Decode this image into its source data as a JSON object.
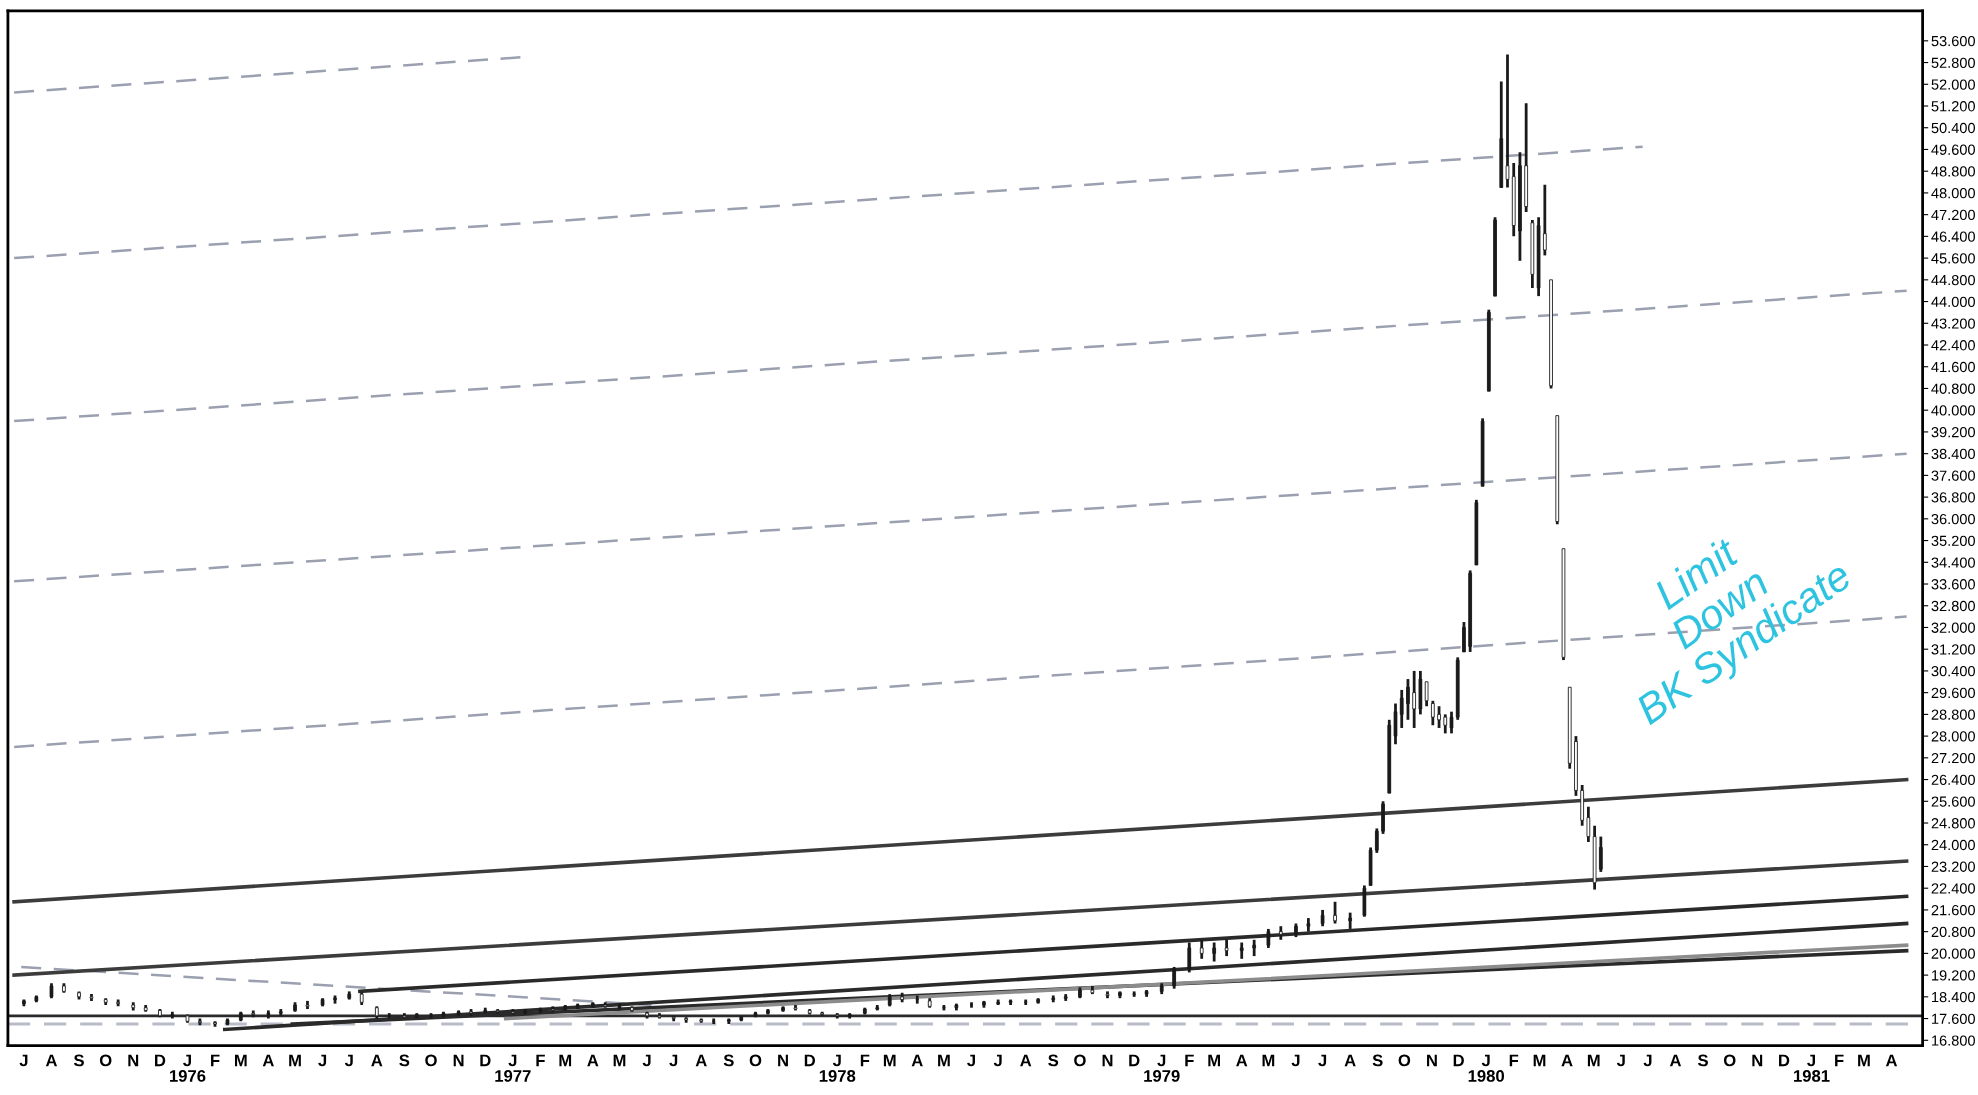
{
  "chart_data": {
    "type": "candlestick",
    "x": [
      "1975-07-01",
      "1975-07-15",
      "1975-08-01",
      "1975-08-15",
      "1975-09-01",
      "1975-09-15",
      "1975-10-01",
      "1975-10-15",
      "1975-11-01",
      "1975-11-15",
      "1975-12-01",
      "1975-12-15",
      "1976-01-01",
      "1976-01-15",
      "1976-02-01",
      "1976-02-15",
      "1976-03-01",
      "1976-03-15",
      "1976-04-01",
      "1976-04-15",
      "1976-05-01",
      "1976-05-15",
      "1976-06-01",
      "1976-06-15",
      "1976-07-01",
      "1976-07-15",
      "1976-08-01",
      "1976-08-15",
      "1976-09-01",
      "1976-09-15",
      "1976-10-01",
      "1976-10-15",
      "1976-11-01",
      "1976-11-15",
      "1976-12-01",
      "1976-12-15",
      "1977-01-01",
      "1977-01-15",
      "1977-02-01",
      "1977-02-15",
      "1977-03-01",
      "1977-03-15",
      "1977-04-01",
      "1977-04-15",
      "1977-05-01",
      "1977-05-15",
      "1977-06-01",
      "1977-06-15",
      "1977-07-01",
      "1977-07-15",
      "1977-08-01",
      "1977-08-15",
      "1977-09-01",
      "1977-09-15",
      "1977-10-01",
      "1977-10-15",
      "1977-11-01",
      "1977-11-15",
      "1977-12-01",
      "1977-12-15",
      "1978-01-01",
      "1978-01-15",
      "1978-02-01",
      "1978-02-15",
      "1978-03-01",
      "1978-03-15",
      "1978-04-01",
      "1978-04-15",
      "1978-05-01",
      "1978-05-15",
      "1978-06-01",
      "1978-06-15",
      "1978-07-01",
      "1978-07-15",
      "1978-08-01",
      "1978-08-15",
      "1978-09-01",
      "1978-09-15",
      "1978-10-01",
      "1978-10-15",
      "1978-11-01",
      "1978-11-15",
      "1978-12-01",
      "1978-12-15",
      "1979-01-01",
      "1979-01-15",
      "1979-02-01",
      "1979-02-15",
      "1979-03-01",
      "1979-03-15",
      "1979-04-01",
      "1979-04-15",
      "1979-05-01",
      "1979-05-15",
      "1979-06-01",
      "1979-06-15",
      "1979-07-01",
      "1979-07-15",
      "1979-08-01",
      "1979-08-17",
      "1979-08-24",
      "1979-08-31",
      "1979-09-07",
      "1979-09-14",
      "1979-09-21",
      "1979-09-28",
      "1979-10-05",
      "1979-10-12",
      "1979-10-19",
      "1979-10-26",
      "1979-11-02",
      "1979-11-09",
      "1979-11-16",
      "1979-11-23",
      "1979-11-30",
      "1979-12-07",
      "1979-12-14",
      "1979-12-21",
      "1979-12-28",
      "1980-01-04",
      "1980-01-11",
      "1980-01-18",
      "1980-01-25",
      "1980-02-01",
      "1980-02-08",
      "1980-02-15",
      "1980-02-22",
      "1980-02-29",
      "1980-03-07",
      "1980-03-14",
      "1980-03-21",
      "1980-03-28",
      "1980-04-04",
      "1980-04-11",
      "1980-04-18",
      "1980-04-25",
      "1980-05-02",
      "1980-05-09"
    ],
    "ohlc": [
      [
        18.15,
        18.3,
        18.05,
        18.25
      ],
      [
        18.25,
        18.45,
        18.2,
        18.4
      ],
      [
        18.4,
        18.9,
        18.35,
        18.8
      ],
      [
        18.8,
        18.9,
        18.55,
        18.6
      ],
      [
        18.55,
        18.6,
        18.3,
        18.4
      ],
      [
        18.4,
        18.5,
        18.25,
        18.35
      ],
      [
        18.3,
        18.35,
        18.1,
        18.2
      ],
      [
        18.2,
        18.3,
        18.05,
        18.15
      ],
      [
        18.1,
        18.2,
        17.9,
        18.0
      ],
      [
        18.0,
        18.1,
        17.85,
        17.9
      ],
      [
        17.9,
        17.95,
        17.65,
        17.7
      ],
      [
        17.7,
        17.85,
        17.6,
        17.75
      ],
      [
        17.7,
        17.75,
        17.45,
        17.5
      ],
      [
        17.5,
        17.6,
        17.35,
        17.45
      ],
      [
        17.45,
        17.5,
        17.3,
        17.4
      ],
      [
        17.4,
        17.6,
        17.35,
        17.55
      ],
      [
        17.55,
        17.85,
        17.5,
        17.8
      ],
      [
        17.8,
        17.9,
        17.65,
        17.75
      ],
      [
        17.75,
        17.9,
        17.6,
        17.8
      ],
      [
        17.8,
        17.95,
        17.7,
        17.85
      ],
      [
        17.9,
        18.2,
        17.85,
        18.1
      ],
      [
        18.1,
        18.25,
        17.95,
        18.05
      ],
      [
        18.1,
        18.35,
        18.05,
        18.3
      ],
      [
        18.3,
        18.45,
        18.15,
        18.35
      ],
      [
        18.35,
        18.6,
        18.3,
        18.5
      ],
      [
        18.5,
        18.55,
        18.1,
        18.2
      ],
      [
        18.0,
        18.05,
        17.6,
        17.7
      ],
      [
        17.7,
        17.8,
        17.6,
        17.7
      ],
      [
        17.7,
        17.8,
        17.6,
        17.65
      ],
      [
        17.65,
        17.8,
        17.6,
        17.75
      ],
      [
        17.7,
        17.8,
        17.6,
        17.7
      ],
      [
        17.7,
        17.85,
        17.65,
        17.8
      ],
      [
        17.8,
        17.9,
        17.7,
        17.85
      ],
      [
        17.85,
        17.95,
        17.7,
        17.8
      ],
      [
        17.85,
        18.0,
        17.8,
        17.9
      ],
      [
        17.9,
        17.95,
        17.8,
        17.85
      ],
      [
        17.85,
        17.95,
        17.75,
        17.8
      ],
      [
        17.8,
        17.95,
        17.75,
        17.9
      ],
      [
        17.9,
        18.0,
        17.8,
        17.95
      ],
      [
        17.95,
        18.05,
        17.85,
        17.9
      ],
      [
        17.95,
        18.1,
        17.9,
        18.05
      ],
      [
        18.05,
        18.15,
        17.95,
        18.1
      ],
      [
        18.1,
        18.2,
        18.0,
        18.15
      ],
      [
        18.1,
        18.2,
        18.0,
        18.05
      ],
      [
        18.0,
        18.15,
        17.95,
        18.05
      ],
      [
        18.0,
        18.05,
        17.85,
        17.9
      ],
      [
        17.8,
        17.85,
        17.6,
        17.7
      ],
      [
        17.7,
        17.8,
        17.6,
        17.65
      ],
      [
        17.65,
        17.7,
        17.5,
        17.6
      ],
      [
        17.6,
        17.65,
        17.45,
        17.55
      ],
      [
        17.55,
        17.6,
        17.45,
        17.5
      ],
      [
        17.5,
        17.6,
        17.4,
        17.5
      ],
      [
        17.5,
        17.6,
        17.4,
        17.55
      ],
      [
        17.55,
        17.7,
        17.5,
        17.65
      ],
      [
        17.7,
        17.85,
        17.65,
        17.8
      ],
      [
        17.8,
        17.95,
        17.75,
        17.9
      ],
      [
        17.9,
        18.05,
        17.85,
        18.0
      ],
      [
        18.0,
        18.1,
        17.9,
        17.95
      ],
      [
        17.9,
        17.95,
        17.75,
        17.8
      ],
      [
        17.8,
        17.85,
        17.7,
        17.75
      ],
      [
        17.75,
        17.8,
        17.6,
        17.7
      ],
      [
        17.7,
        17.8,
        17.6,
        17.75
      ],
      [
        17.8,
        18.0,
        17.75,
        17.95
      ],
      [
        17.95,
        18.1,
        17.9,
        18.0
      ],
      [
        18.1,
        18.5,
        18.05,
        18.4
      ],
      [
        18.4,
        18.55,
        18.2,
        18.3
      ],
      [
        18.3,
        18.45,
        18.15,
        18.3
      ],
      [
        18.25,
        18.35,
        18.0,
        18.05
      ],
      [
        18.0,
        18.1,
        17.9,
        18.0
      ],
      [
        18.0,
        18.15,
        17.9,
        18.1
      ],
      [
        18.1,
        18.2,
        18.0,
        18.1
      ],
      [
        18.1,
        18.25,
        18.0,
        18.2
      ],
      [
        18.15,
        18.3,
        18.1,
        18.2
      ],
      [
        18.2,
        18.3,
        18.1,
        18.25
      ],
      [
        18.2,
        18.3,
        18.1,
        18.2
      ],
      [
        18.2,
        18.35,
        18.15,
        18.3
      ],
      [
        18.3,
        18.45,
        18.2,
        18.35
      ],
      [
        18.35,
        18.5,
        18.25,
        18.4
      ],
      [
        18.4,
        18.75,
        18.35,
        18.65
      ],
      [
        18.65,
        18.8,
        18.5,
        18.55
      ],
      [
        18.5,
        18.6,
        18.35,
        18.45
      ],
      [
        18.45,
        18.6,
        18.35,
        18.55
      ],
      [
        18.5,
        18.6,
        18.4,
        18.5
      ],
      [
        18.5,
        18.65,
        18.4,
        18.6
      ],
      [
        18.6,
        18.9,
        18.5,
        18.8
      ],
      [
        18.8,
        19.5,
        18.7,
        19.4
      ],
      [
        19.4,
        20.4,
        19.3,
        20.2
      ],
      [
        20.2,
        20.5,
        19.8,
        20.0
      ],
      [
        20.0,
        20.4,
        19.7,
        20.2
      ],
      [
        20.2,
        20.5,
        19.9,
        20.1
      ],
      [
        20.1,
        20.4,
        19.8,
        20.2
      ],
      [
        20.2,
        20.5,
        19.9,
        20.3
      ],
      [
        20.3,
        20.9,
        20.2,
        20.8
      ],
      [
        20.8,
        21.0,
        20.5,
        20.7
      ],
      [
        20.7,
        21.1,
        20.6,
        21.0
      ],
      [
        21.0,
        21.3,
        20.8,
        21.1
      ],
      [
        21.1,
        21.6,
        21.0,
        21.4
      ],
      [
        21.4,
        21.9,
        21.1,
        21.2
      ],
      [
        21.2,
        21.5,
        20.9,
        21.3
      ],
      [
        21.4,
        22.5,
        21.35,
        22.4
      ],
      [
        22.5,
        23.9,
        22.5,
        23.8
      ],
      [
        23.8,
        24.6,
        23.7,
        24.5
      ],
      [
        24.5,
        25.6,
        24.4,
        25.5
      ],
      [
        25.9,
        28.6,
        25.9,
        28.4
      ],
      [
        28.0,
        29.2,
        27.7,
        28.9
      ],
      [
        28.8,
        29.7,
        28.3,
        29.4
      ],
      [
        29.2,
        30.1,
        28.6,
        29.8
      ],
      [
        29.6,
        30.4,
        28.3,
        29.0
      ],
      [
        29.0,
        30.4,
        28.8,
        30.1
      ],
      [
        30.0,
        30.0,
        29.1,
        29.3
      ],
      [
        29.2,
        29.3,
        28.4,
        28.7
      ],
      [
        28.8,
        29.1,
        28.3,
        28.6
      ],
      [
        28.7,
        28.8,
        28.1,
        28.4
      ],
      [
        28.3,
        28.9,
        28.1,
        28.7
      ],
      [
        28.7,
        30.9,
        28.6,
        30.8
      ],
      [
        31.1,
        32.2,
        31.1,
        32.0
      ],
      [
        31.3,
        34.1,
        31.1,
        34.0
      ],
      [
        34.3,
        36.7,
        34.3,
        36.6
      ],
      [
        37.2,
        39.7,
        37.2,
        39.6
      ],
      [
        40.7,
        43.7,
        40.7,
        43.6
      ],
      [
        44.2,
        47.1,
        44.2,
        47.0
      ],
      [
        48.2,
        52.1,
        48.2,
        50.0
      ],
      [
        49.0,
        53.1,
        48.2,
        48.5
      ],
      [
        48.6,
        49.1,
        46.4,
        46.8
      ],
      [
        46.6,
        49.5,
        45.5,
        49.0
      ],
      [
        49.0,
        51.3,
        47.3,
        47.5
      ],
      [
        46.9,
        47.0,
        44.5,
        45.0
      ],
      [
        44.5,
        47.1,
        44.2,
        46.8
      ],
      [
        46.5,
        48.3,
        45.7,
        45.9
      ],
      [
        44.8,
        44.8,
        40.8,
        40.9
      ],
      [
        39.8,
        39.8,
        35.8,
        35.9
      ],
      [
        34.9,
        34.9,
        30.8,
        30.9
      ],
      [
        29.8,
        29.8,
        26.8,
        27.0
      ],
      [
        27.8,
        28.0,
        25.8,
        26.0
      ],
      [
        26.0,
        26.2,
        24.7,
        24.9
      ],
      [
        25.0,
        25.4,
        24.1,
        24.3
      ],
      [
        24.3,
        24.7,
        22.35,
        22.6
      ],
      [
        23.1,
        24.3,
        23.0,
        23.9
      ]
    ],
    "series": [
      {
        "type": "line",
        "line_style": "dashed",
        "color": "#9aa0b0",
        "x": [
          "1975-06-20",
          "1977-01-13"
        ],
        "values": [
          51.7,
          53.0
        ]
      },
      {
        "type": "line",
        "line_style": "dashed",
        "color": "#9aa0b0",
        "x": [
          "1975-06-20",
          "1980-06-25"
        ],
        "values": [
          45.6,
          49.7
        ]
      },
      {
        "type": "line",
        "line_style": "dashed",
        "color": "#9aa0b0",
        "x": [
          "1975-06-20",
          "1981-04-18"
        ],
        "values": [
          39.6,
          44.4
        ]
      },
      {
        "type": "line",
        "line_style": "dashed",
        "color": "#9aa0b0",
        "x": [
          "1975-06-20",
          "1981-04-18"
        ],
        "values": [
          33.7,
          38.4
        ]
      },
      {
        "type": "line",
        "line_style": "dashed",
        "color": "#9aa0b0",
        "x": [
          "1975-06-20",
          "1981-04-18"
        ],
        "values": [
          27.6,
          32.4
        ]
      },
      {
        "type": "line",
        "line_style": "dashed",
        "color": "#9aa0b0",
        "x": [
          "1975-06-28",
          "1977-06-06"
        ],
        "values": [
          19.5,
          18.1
        ]
      },
      {
        "type": "line",
        "line_style": "solid",
        "color": "#3c3c3c",
        "x": [
          "1975-06-20",
          "1981-04-18"
        ],
        "values": [
          21.9,
          26.4
        ]
      },
      {
        "type": "line",
        "line_style": "solid",
        "color": "#3c3c3c",
        "x": [
          "1975-06-20",
          "1981-04-18"
        ],
        "values": [
          19.2,
          23.4
        ]
      },
      {
        "type": "line",
        "line_style": "solid",
        "color": "#2a2a2a",
        "x": [
          "1976-07-13",
          "1981-04-18"
        ],
        "values": [
          18.6,
          22.1
        ]
      },
      {
        "type": "line",
        "line_style": "solid",
        "color": "#2a2a2a",
        "x": [
          "1976-02-12",
          "1981-04-18"
        ],
        "values": [
          17.2,
          21.1
        ]
      },
      {
        "type": "line",
        "line_style": "solid",
        "color": "#2a2a2a",
        "x": [
          "1976-04-28",
          "1981-04-18"
        ],
        "values": [
          17.4,
          20.1
        ]
      },
      {
        "type": "line",
        "line_style": "solid",
        "color": "#8c8c8c",
        "x": [
          "1976-12-24",
          "1981-04-18"
        ],
        "values": [
          17.6,
          20.3
        ]
      }
    ],
    "ref_lines": [
      {
        "axis": "y",
        "value": 17.7,
        "color": "#2a2a2a",
        "line_style": "solid"
      },
      {
        "axis": "y",
        "value": 17.4,
        "color": "#b8bcc8",
        "line_style": "dashed"
      }
    ],
    "annotations": [
      "Limit\nDown\nBK Syndicate"
    ],
    "xlim": [
      "1975-06-13",
      "1981-05-06"
    ],
    "ylim": [
      16.6,
      54.7
    ],
    "xticks": [
      {
        "value": "1975-07-01",
        "label": "J"
      },
      {
        "value": "1975-08-01",
        "label": "A"
      },
      {
        "value": "1975-09-01",
        "label": "S"
      },
      {
        "value": "1975-10-01",
        "label": "O"
      },
      {
        "value": "1975-11-01",
        "label": "N"
      },
      {
        "value": "1975-12-01",
        "label": "D"
      },
      {
        "value": "1976-01-01",
        "label": "J\n1976"
      },
      {
        "value": "1976-02-01",
        "label": "F"
      },
      {
        "value": "1976-03-01",
        "label": "M"
      },
      {
        "value": "1976-04-01",
        "label": "A"
      },
      {
        "value": "1976-05-01",
        "label": "M"
      },
      {
        "value": "1976-06-01",
        "label": "J"
      },
      {
        "value": "1976-07-01",
        "label": "J"
      },
      {
        "value": "1976-08-01",
        "label": "A"
      },
      {
        "value": "1976-09-01",
        "label": "S"
      },
      {
        "value": "1976-10-01",
        "label": "O"
      },
      {
        "value": "1976-11-01",
        "label": "N"
      },
      {
        "value": "1976-12-01",
        "label": "D"
      },
      {
        "value": "1977-01-01",
        "label": "J\n1977"
      },
      {
        "value": "1977-02-01",
        "label": "F"
      },
      {
        "value": "1977-03-01",
        "label": "M"
      },
      {
        "value": "1977-04-01",
        "label": "A"
      },
      {
        "value": "1977-05-01",
        "label": "M"
      },
      {
        "value": "1977-06-01",
        "label": "J"
      },
      {
        "value": "1977-07-01",
        "label": "J"
      },
      {
        "value": "1977-08-01",
        "label": "A"
      },
      {
        "value": "1977-09-01",
        "label": "S"
      },
      {
        "value": "1977-10-01",
        "label": "O"
      },
      {
        "value": "1977-11-01",
        "label": "N"
      },
      {
        "value": "1977-12-01",
        "label": "D"
      },
      {
        "value": "1978-01-01",
        "label": "J\n1978"
      },
      {
        "value": "1978-02-01",
        "label": "F"
      },
      {
        "value": "1978-03-01",
        "label": "M"
      },
      {
        "value": "1978-04-01",
        "label": "A"
      },
      {
        "value": "1978-05-01",
        "label": "M"
      },
      {
        "value": "1978-06-01",
        "label": "J"
      },
      {
        "value": "1978-07-01",
        "label": "J"
      },
      {
        "value": "1978-08-01",
        "label": "A"
      },
      {
        "value": "1978-09-01",
        "label": "S"
      },
      {
        "value": "1978-10-01",
        "label": "O"
      },
      {
        "value": "1978-11-01",
        "label": "N"
      },
      {
        "value": "1978-12-01",
        "label": "D"
      },
      {
        "value": "1979-01-01",
        "label": "J\n1979"
      },
      {
        "value": "1979-02-01",
        "label": "F"
      },
      {
        "value": "1979-03-01",
        "label": "M"
      },
      {
        "value": "1979-04-01",
        "label": "A"
      },
      {
        "value": "1979-05-01",
        "label": "M"
      },
      {
        "value": "1979-06-01",
        "label": "J"
      },
      {
        "value": "1979-07-01",
        "label": "J"
      },
      {
        "value": "1979-08-01",
        "label": "A"
      },
      {
        "value": "1979-09-01",
        "label": "S"
      },
      {
        "value": "1979-10-01",
        "label": "O"
      },
      {
        "value": "1979-11-01",
        "label": "N"
      },
      {
        "value": "1979-12-01",
        "label": "D"
      },
      {
        "value": "1980-01-01",
        "label": "J\n1980"
      },
      {
        "value": "1980-02-01",
        "label": "F"
      },
      {
        "value": "1980-03-01",
        "label": "M"
      },
      {
        "value": "1980-04-01",
        "label": "A"
      },
      {
        "value": "1980-05-01",
        "label": "M"
      },
      {
        "value": "1980-06-01",
        "label": "J"
      },
      {
        "value": "1980-07-01",
        "label": "J"
      },
      {
        "value": "1980-08-01",
        "label": "A"
      },
      {
        "value": "1980-09-01",
        "label": "S"
      },
      {
        "value": "1980-10-01",
        "label": "O"
      },
      {
        "value": "1980-11-01",
        "label": "N"
      },
      {
        "value": "1980-12-01",
        "label": "D"
      },
      {
        "value": "1981-01-01",
        "label": "J\n1981"
      },
      {
        "value": "1981-02-01",
        "label": "F"
      },
      {
        "value": "1981-03-01",
        "label": "M"
      },
      {
        "value": "1981-04-01",
        "label": "A"
      }
    ],
    "yticks": [
      {
        "value": 16.8,
        "label": "16.800"
      },
      {
        "value": 17.6,
        "label": "17.600"
      },
      {
        "value": 18.4,
        "label": "18.400"
      },
      {
        "value": 19.2,
        "label": "19.200"
      },
      {
        "value": 20.0,
        "label": "20.000"
      },
      {
        "value": 20.8,
        "label": "20.800"
      },
      {
        "value": 21.6,
        "label": "21.600"
      },
      {
        "value": 22.4,
        "label": "22.400"
      },
      {
        "value": 23.2,
        "label": "23.200"
      },
      {
        "value": 24.0,
        "label": "24.000"
      },
      {
        "value": 24.8,
        "label": "24.800"
      },
      {
        "value": 25.6,
        "label": "25.600"
      },
      {
        "value": 26.4,
        "label": "26.400"
      },
      {
        "value": 27.2,
        "label": "27.200"
      },
      {
        "value": 28.0,
        "label": "28.000"
      },
      {
        "value": 28.8,
        "label": "28.800"
      },
      {
        "value": 29.6,
        "label": "29.600"
      },
      {
        "value": 30.4,
        "label": "30.400"
      },
      {
        "value": 31.2,
        "label": "31.200"
      },
      {
        "value": 32.0,
        "label": "32.000"
      },
      {
        "value": 32.8,
        "label": "32.800"
      },
      {
        "value": 33.6,
        "label": "33.600"
      },
      {
        "value": 34.4,
        "label": "34.400"
      },
      {
        "value": 35.2,
        "label": "35.200"
      },
      {
        "value": 36.0,
        "label": "36.000"
      },
      {
        "value": 36.8,
        "label": "36.800"
      },
      {
        "value": 37.6,
        "label": "37.600"
      },
      {
        "value": 38.4,
        "label": "38.400"
      },
      {
        "value": 39.2,
        "label": "39.200"
      },
      {
        "value": 40.0,
        "label": "40.000"
      },
      {
        "value": 40.8,
        "label": "40.800"
      },
      {
        "value": 41.6,
        "label": "41.600"
      },
      {
        "value": 42.4,
        "label": "42.400"
      },
      {
        "value": 43.2,
        "label": "43.200"
      },
      {
        "value": 44.0,
        "label": "44.000"
      },
      {
        "value": 44.8,
        "label": "44.800"
      },
      {
        "value": 45.6,
        "label": "45.600"
      },
      {
        "value": 46.4,
        "label": "46.400"
      },
      {
        "value": 47.2,
        "label": "47.200"
      },
      {
        "value": 48.0,
        "label": "48.000"
      },
      {
        "value": 48.8,
        "label": "48.800"
      },
      {
        "value": 49.6,
        "label": "49.600"
      },
      {
        "value": 50.4,
        "label": "50.400"
      },
      {
        "value": 51.2,
        "label": "51.200"
      },
      {
        "value": 52.0,
        "label": "52.000"
      },
      {
        "value": 52.8,
        "label": "52.800"
      },
      {
        "value": 53.6,
        "label": "53.600"
      }
    ]
  }
}
